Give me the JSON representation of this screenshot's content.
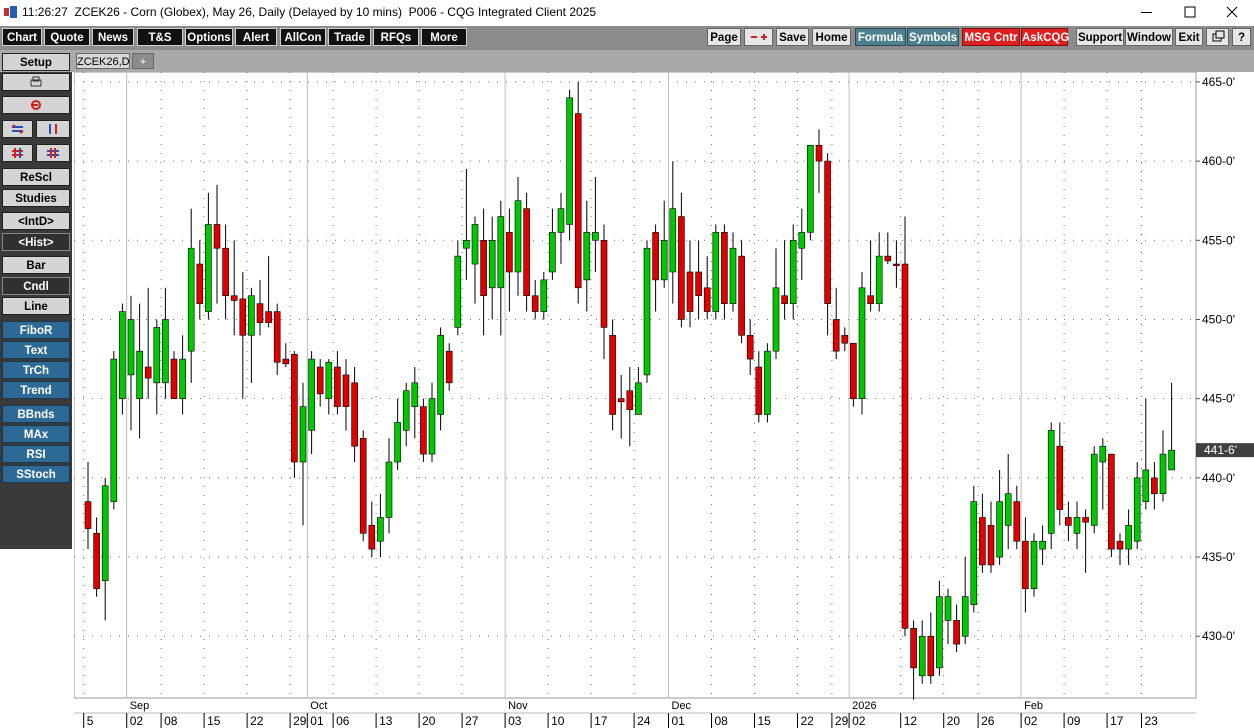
{
  "window": {
    "title": "11:26:27  ZCEK26 - Corn (Globex), May 26, Daily (Delayed by 10 mins)  P006 - CQG Integrated Client 2025"
  },
  "toolbar": {
    "left": [
      "Chart",
      "Quote",
      "News",
      "T&S",
      "Options",
      "Alert",
      "AllCon",
      "Trade",
      "RFQs",
      "More"
    ],
    "right": [
      "Page",
      "Save",
      "Home",
      "Formula",
      "Symbols",
      "MSG Cntr",
      "AskCQG",
      "Support",
      "Window",
      "Exit",
      "?"
    ]
  },
  "sidebar": {
    "buttons": [
      "Setup",
      "ReScl",
      "Studies",
      "<IntD>",
      "<Hist>",
      "Bar",
      "Cndl",
      "Line",
      "FiboR",
      "Text",
      "TrCh",
      "Trend",
      "BBnds",
      "MAx",
      "RSI",
      "SStoch"
    ]
  },
  "tabs": [
    "ZCEK26,D",
    "+"
  ],
  "chart_data": {
    "type": "candlestick",
    "categories": [
      "5",
      null,
      null,
      null,
      null,
      "02",
      null,
      null,
      null,
      "08",
      null,
      null,
      null,
      null,
      "15",
      null,
      null,
      null,
      null,
      "22",
      null,
      null,
      null,
      null,
      "29",
      null,
      "01",
      null,
      null,
      "06",
      null,
      null,
      null,
      null,
      "13",
      null,
      null,
      null,
      null,
      "20",
      null,
      null,
      null,
      null,
      "27",
      null,
      null,
      null,
      null,
      "03",
      null,
      null,
      null,
      null,
      "10",
      null,
      null,
      null,
      null,
      "17",
      null,
      null,
      null,
      null,
      "24",
      null,
      null,
      null,
      "01",
      null,
      null,
      null,
      null,
      "08",
      null,
      null,
      null,
      null,
      "15",
      null,
      null,
      null,
      null,
      "22",
      null,
      null,
      null,
      "29",
      null,
      "02",
      null,
      null,
      null,
      null,
      null,
      "12",
      null,
      null,
      null,
      null,
      "20",
      null,
      null,
      null,
      "26",
      null,
      null,
      null,
      null,
      "02",
      null,
      null,
      null,
      null,
      "09",
      null,
      null,
      null,
      null,
      "17",
      null,
      null,
      null,
      "23",
      null,
      null,
      null
    ],
    "month_labels": [
      null,
      null,
      null,
      null,
      null,
      "Sep",
      null,
      null,
      null,
      null,
      null,
      null,
      null,
      null,
      null,
      null,
      null,
      null,
      null,
      null,
      null,
      null,
      null,
      null,
      null,
      null,
      "Oct",
      null,
      null,
      null,
      null,
      null,
      null,
      null,
      null,
      null,
      null,
      null,
      null,
      null,
      null,
      null,
      null,
      null,
      null,
      null,
      null,
      null,
      null,
      "Nov",
      null,
      null,
      null,
      null,
      null,
      null,
      null,
      null,
      null,
      null,
      null,
      null,
      null,
      null,
      null,
      null,
      null,
      null,
      "Dec",
      null,
      null,
      null,
      null,
      null,
      null,
      null,
      null,
      null,
      null,
      null,
      null,
      null,
      null,
      null,
      null,
      null,
      null,
      null,
      null,
      "2026",
      null,
      null,
      null,
      null,
      null,
      null,
      null,
      null,
      null,
      null,
      null,
      null,
      null,
      null,
      null,
      null,
      null,
      null,
      null,
      "Feb",
      null,
      null,
      null,
      null,
      null,
      null,
      null,
      null,
      null,
      null,
      null,
      null,
      null,
      null,
      null,
      null,
      null
    ],
    "open": [
      438.5,
      436.5,
      433.5,
      438.5,
      445,
      446.5,
      445,
      447,
      446,
      446,
      447.5,
      445,
      448,
      453.5,
      450.5,
      456,
      454.5,
      451.5,
      451.3,
      449,
      451,
      450.5,
      450.5,
      447.5,
      447.8,
      441,
      443,
      447,
      445,
      447,
      446.5,
      446,
      442.5,
      437,
      436,
      437.5,
      441,
      443,
      444.5,
      444.5,
      441.5,
      444,
      448,
      449.5,
      454.5,
      453.5,
      455,
      452,
      452,
      455.5,
      453,
      457,
      451.5,
      450.5,
      453,
      455.5,
      456,
      463,
      452.5,
      455,
      455,
      449,
      445,
      445.5,
      444,
      446.5,
      455.5,
      452.5,
      453,
      456.5,
      453,
      453,
      452,
      450.5,
      455.5,
      451,
      454,
      449,
      447,
      444,
      448,
      451.5,
      451,
      454.5,
      455.5,
      461,
      460,
      450,
      449,
      448.5,
      445,
      451.5,
      451,
      454,
      453.5,
      453.5,
      430.5,
      427.5,
      430,
      428,
      431,
      431,
      430,
      432,
      437.5,
      437,
      435,
      437,
      438.5,
      436,
      433,
      435.5,
      436.5,
      442,
      437.5,
      436.5,
      437.5,
      437,
      441,
      441.5,
      436,
      435.5,
      436,
      438.5,
      440,
      439,
      440.5
    ],
    "high": [
      441,
      437.5,
      440,
      448,
      451,
      451.5,
      451,
      452,
      450,
      452,
      448,
      449,
      457,
      455,
      458,
      458.5,
      456,
      455,
      453,
      452,
      452.5,
      454,
      451,
      448.5,
      448,
      446,
      448,
      447.5,
      447.5,
      448,
      447.5,
      447,
      443,
      438.5,
      439,
      442.5,
      445,
      446,
      447,
      445,
      446,
      449.5,
      448.5,
      455,
      459.5,
      456.5,
      457,
      456.5,
      457.5,
      457,
      459,
      458,
      452.5,
      453,
      457,
      458,
      464.5,
      465,
      457.5,
      459,
      456,
      450,
      446.5,
      447,
      447,
      455,
      456,
      457.5,
      460,
      458,
      455,
      455,
      454,
      456,
      456,
      455.5,
      455,
      450,
      448,
      448.5,
      454.5,
      455,
      456,
      457,
      461,
      462,
      460.5,
      452,
      449.5,
      448.5,
      453,
      455,
      455.5,
      455.5,
      455,
      456.5,
      431,
      431,
      431.5,
      433.5,
      433,
      432,
      435,
      439.5,
      439,
      438.5,
      440.5,
      441.5,
      439.5,
      437.5,
      436.5,
      437,
      443.5,
      443.5,
      438.5,
      438.5,
      438,
      442,
      442.5,
      441.5,
      436.5,
      438,
      441,
      445,
      441,
      443,
      446
    ],
    "low": [
      435.5,
      432.5,
      431,
      438,
      444,
      443,
      442.5,
      445,
      444,
      445,
      445,
      444,
      446,
      450,
      450,
      451,
      450,
      449,
      445,
      446,
      449,
      449.5,
      446.5,
      447,
      440,
      437,
      441.5,
      444.5,
      444,
      444,
      443,
      441,
      436,
      435,
      435,
      436.5,
      440.5,
      442,
      442.5,
      441,
      441,
      443,
      445.5,
      449,
      452.5,
      451,
      449,
      450,
      449,
      450.5,
      451.5,
      450.5,
      450,
      450,
      452.5,
      453.5,
      455,
      451,
      450.5,
      453,
      447.5,
      443,
      442.5,
      442,
      444,
      446,
      450.5,
      452,
      451,
      449.5,
      449.5,
      450,
      450,
      450,
      450,
      450.5,
      448.5,
      446.5,
      443.5,
      443.5,
      447.5,
      450,
      450,
      452.5,
      455,
      458,
      449,
      447.5,
      448,
      444.5,
      444,
      450.5,
      450.5,
      453.5,
      452,
      430,
      426,
      427,
      427,
      427.5,
      429.5,
      429,
      429.5,
      431.5,
      434,
      434,
      434.5,
      435.5,
      435.5,
      431.5,
      432.5,
      434.5,
      435.5,
      437,
      436,
      435.5,
      434,
      436.5,
      438,
      435,
      434.5,
      434.5,
      435.5,
      438,
      438,
      438.5,
      440.5
    ],
    "close": [
      436.8,
      433,
      439.5,
      447.5,
      450.5,
      450,
      448,
      446.3,
      449.5,
      450,
      445,
      447.5,
      454.5,
      451,
      456,
      454.5,
      451.5,
      451.2,
      449,
      451.5,
      449.8,
      449.8,
      447.3,
      447.2,
      441,
      444.5,
      447.5,
      445.3,
      447.3,
      444.5,
      444.5,
      442,
      436.5,
      435.5,
      437.5,
      441,
      443.5,
      445.5,
      446,
      441.5,
      445,
      449,
      446,
      454,
      455,
      456,
      451.5,
      455,
      456.5,
      453,
      457.5,
      451.5,
      450.5,
      452.5,
      455.5,
      457,
      464,
      452,
      455.5,
      455.5,
      449.5,
      444,
      444.8,
      444.3,
      446,
      454.5,
      452.5,
      455,
      457,
      450,
      450.5,
      451.5,
      450.5,
      455.5,
      451,
      454.5,
      449,
      447.5,
      444,
      448,
      452,
      451,
      455,
      455.5,
      461,
      460,
      451,
      448,
      448.5,
      445,
      452,
      451,
      454,
      453.7,
      453.4,
      430.5,
      428,
      430,
      427.5,
      432.5,
      432.5,
      429.5,
      432.5,
      438.5,
      434.5,
      434.5,
      438.5,
      439,
      436,
      433,
      436,
      436,
      443,
      438,
      437,
      437.5,
      437.2,
      441.5,
      442,
      435.5,
      435.5,
      437,
      440,
      440.5,
      439,
      441.5,
      441.75
    ],
    "up_color": "#00c800",
    "down_color": "#e00000",
    "ylim": [
      426.1,
      465.5
    ],
    "yticks": [
      {
        "value": 430,
        "label": "430-0'"
      },
      {
        "value": 435,
        "label": "435-0'"
      },
      {
        "value": 440,
        "label": "440-0'"
      },
      {
        "value": 445,
        "label": "445-0'"
      },
      {
        "value": 450,
        "label": "450-0'"
      },
      {
        "value": 455,
        "label": "455-0'"
      },
      {
        "value": 460,
        "label": "460-0'"
      },
      {
        "value": 465,
        "label": "465-0'"
      }
    ],
    "last_price": {
      "value": 441.75,
      "label": "441-6'"
    },
    "grid": true
  }
}
